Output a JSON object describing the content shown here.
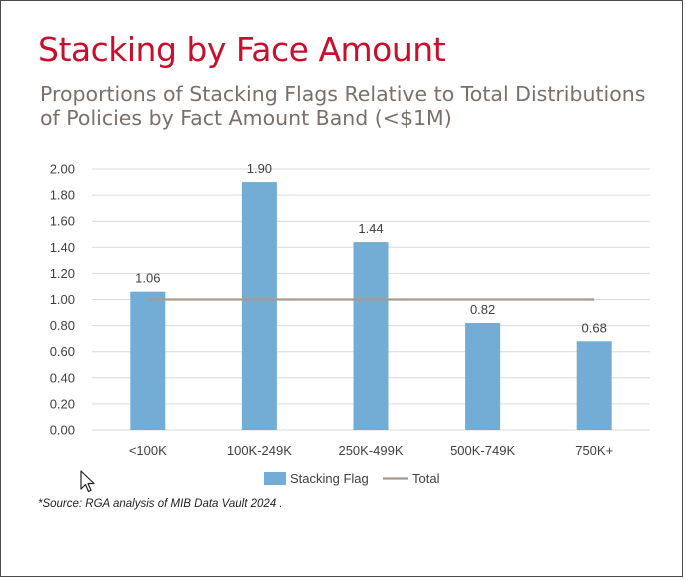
{
  "title": "Stacking by Face Amount",
  "subtitle": "Proportions of Stacking Flags Relative to Total Distributions of Policies by Fact Amount Band (<$1M)",
  "source": "*Source: RGA analysis of MIB Data Vault 2024 .",
  "colors": {
    "title": "#c8102e",
    "bar": "#73acd4",
    "total_line": "#a89a8e",
    "subtitle": "#7a7068"
  },
  "chart_data": {
    "type": "bar",
    "categories": [
      "<100K",
      "100K-249K",
      "250K-499K",
      "500K-749K",
      "750K+"
    ],
    "series": [
      {
        "name": "Stacking Flag",
        "type": "bar",
        "values": [
          1.06,
          1.9,
          1.44,
          0.82,
          0.68
        ],
        "labels": [
          "1.06",
          "1.90",
          "1.44",
          "0.82",
          "0.68"
        ]
      },
      {
        "name": "Total",
        "type": "line",
        "values": [
          1.0,
          1.0,
          1.0,
          1.0,
          1.0
        ]
      }
    ],
    "ylim": [
      0,
      2.0
    ],
    "yticks": [
      "0.00",
      "0.20",
      "0.40",
      "0.60",
      "0.80",
      "1.00",
      "1.20",
      "1.40",
      "1.60",
      "1.80",
      "2.00"
    ],
    "grid": true,
    "legend": "bottom"
  }
}
